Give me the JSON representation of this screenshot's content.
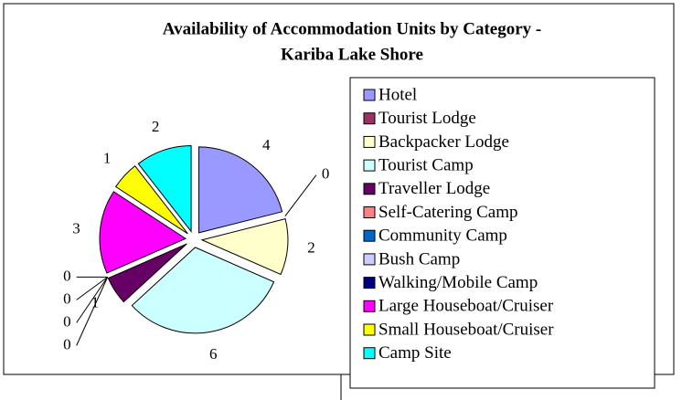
{
  "chart_data": {
    "type": "pie",
    "title": [
      "Availability of Accommodation Units by Category -",
      "Kariba Lake Shore"
    ],
    "categories": [
      "Hotel",
      "Tourist Lodge",
      "Backpacker Lodge",
      "Tourist Camp",
      "Traveller Lodge",
      "Self-Catering Camp",
      "Community Camp",
      "Bush Camp",
      "Walking/Mobile Camp",
      "Large Houseboat/Cruiser",
      "Small Houseboat/Cruiser",
      "Camp Site"
    ],
    "values": [
      4,
      0,
      2,
      6,
      1,
      0,
      0,
      0,
      0,
      3,
      1,
      2
    ],
    "colors": [
      "#9999ff",
      "#993366",
      "#ffffcc",
      "#ccffff",
      "#660066",
      "#ff8080",
      "#0066cc",
      "#ccccff",
      "#000080",
      "#ff00ff",
      "#ffff00",
      "#00ffff"
    ],
    "legend": "right"
  }
}
